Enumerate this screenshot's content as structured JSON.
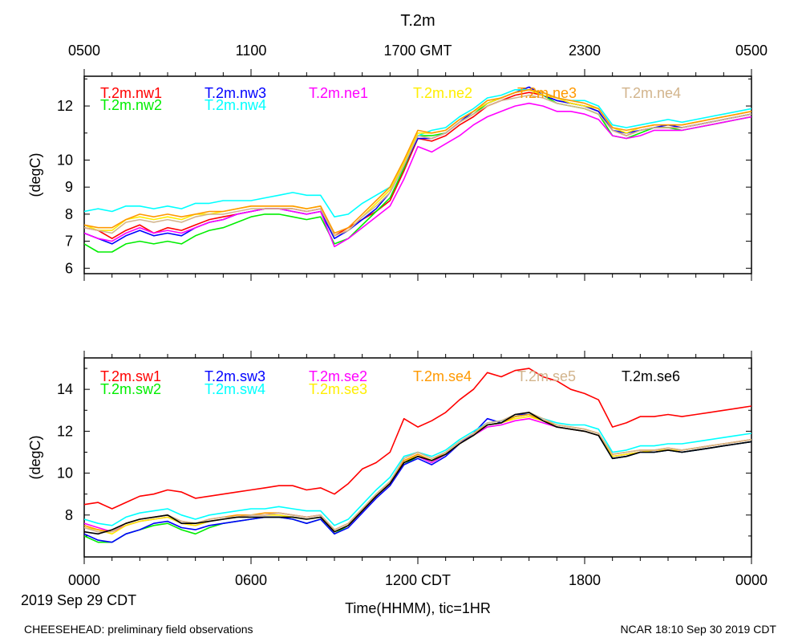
{
  "page": {
    "title": "T.2m",
    "footer_left": "CHEESEHEAD: preliminary field observations",
    "footer_right": "NCAR 18:10 Sep 30 2019 CDT",
    "date_label": "2019 Sep 29 CDT",
    "x_axis_label": "Time(HHMM), tic=1HR",
    "top_ticks": [
      "0500",
      "1100",
      "1700 GMT",
      "2300",
      "0500"
    ],
    "bottom_ticks": [
      "0000",
      "0600",
      "1200 CDT",
      "1800",
      "0000"
    ]
  },
  "chart_data": [
    {
      "type": "line",
      "panel": "top",
      "ylabel": "(degC)",
      "ylim": [
        5.8,
        13.1
      ],
      "xlim": [
        0,
        24
      ],
      "yticks": [
        "6",
        "7",
        "8",
        "9",
        "10",
        "12"
      ],
      "ytick_values": [
        6,
        7,
        8,
        9,
        10,
        12
      ],
      "x": [
        0,
        0.5,
        1,
        1.5,
        2,
        2.5,
        3,
        3.5,
        4,
        4.5,
        5,
        5.5,
        6,
        6.5,
        7,
        7.5,
        8,
        8.5,
        9,
        9.5,
        10,
        10.5,
        11,
        11.5,
        12,
        12.5,
        13,
        13.5,
        14,
        14.5,
        15,
        15.5,
        16,
        16.5,
        17,
        17.5,
        18,
        18.5,
        19,
        19.5,
        20,
        20.5,
        21,
        21.5,
        22,
        22.5,
        23,
        23.5,
        24
      ],
      "series": [
        {
          "name": "T.2m.nw1",
          "color": "#ff0000",
          "values": [
            7.5,
            7.4,
            7.1,
            7.4,
            7.6,
            7.3,
            7.5,
            7.4,
            7.6,
            7.8,
            7.9,
            8.0,
            8.1,
            8.2,
            8.2,
            8.2,
            8.1,
            8.2,
            7.2,
            7.5,
            7.8,
            8.1,
            8.5,
            9.6,
            10.8,
            10.7,
            10.9,
            11.3,
            11.6,
            12.0,
            12.2,
            12.4,
            12.5,
            12.4,
            12.2,
            12.1,
            12.0,
            11.8,
            11.1,
            10.9,
            11.1,
            11.2,
            11.2,
            11.2,
            11.3,
            11.4,
            11.5,
            11.6,
            11.7
          ]
        },
        {
          "name": "T.2m.nw2",
          "color": "#00ee00",
          "values": [
            6.9,
            6.6,
            6.6,
            6.9,
            7.0,
            6.9,
            7.0,
            6.9,
            7.2,
            7.4,
            7.5,
            7.7,
            7.9,
            8.0,
            8.0,
            7.9,
            7.8,
            7.9,
            6.9,
            7.1,
            7.6,
            8.1,
            8.6,
            9.7,
            10.9,
            10.9,
            11.0,
            11.4,
            11.7,
            12.1,
            12.3,
            12.5,
            12.6,
            12.4,
            12.1,
            12.0,
            11.9,
            11.7,
            10.9,
            10.8,
            11.0,
            11.2,
            11.2,
            11.1,
            11.2,
            11.3,
            11.4,
            11.5,
            11.6
          ]
        },
        {
          "name": "T.2m.nw3",
          "color": "#0000ff",
          "values": [
            7.3,
            7.1,
            6.9,
            7.2,
            7.4,
            7.2,
            7.3,
            7.2,
            7.5,
            7.7,
            7.8,
            8.0,
            8.1,
            8.2,
            8.2,
            8.1,
            8.0,
            8.1,
            7.1,
            7.4,
            7.8,
            8.2,
            8.8,
            9.8,
            10.8,
            10.8,
            11.0,
            11.4,
            11.8,
            12.1,
            12.3,
            12.5,
            12.7,
            12.4,
            12.2,
            12.1,
            12.0,
            11.8,
            11.1,
            11.0,
            11.1,
            11.2,
            11.3,
            11.2,
            11.3,
            11.4,
            11.5,
            11.6,
            11.7
          ]
        },
        {
          "name": "T.2m.nw4",
          "color": "#00ffff",
          "values": [
            8.1,
            8.2,
            8.1,
            8.3,
            8.3,
            8.2,
            8.3,
            8.2,
            8.4,
            8.4,
            8.5,
            8.5,
            8.5,
            8.6,
            8.7,
            8.8,
            8.7,
            8.7,
            7.9,
            8.0,
            8.4,
            8.7,
            9.0,
            9.9,
            10.9,
            11.1,
            11.2,
            11.6,
            11.9,
            12.3,
            12.4,
            12.6,
            12.6,
            12.5,
            12.3,
            12.2,
            12.2,
            12.0,
            11.3,
            11.2,
            11.3,
            11.4,
            11.5,
            11.4,
            11.5,
            11.6,
            11.7,
            11.8,
            11.9
          ]
        },
        {
          "name": "T.2m.ne1",
          "color": "#ff00ff",
          "values": [
            7.3,
            7.1,
            7.0,
            7.3,
            7.5,
            7.3,
            7.4,
            7.3,
            7.5,
            7.7,
            7.8,
            8.0,
            8.1,
            8.2,
            8.2,
            8.1,
            8.0,
            8.1,
            6.8,
            7.1,
            7.5,
            7.9,
            8.3,
            9.3,
            10.5,
            10.3,
            10.6,
            10.9,
            11.3,
            11.6,
            11.8,
            12.0,
            12.1,
            12.0,
            11.8,
            11.8,
            11.7,
            11.5,
            10.9,
            10.8,
            10.9,
            11.1,
            11.1,
            11.1,
            11.2,
            11.3,
            11.4,
            11.5,
            11.6
          ]
        },
        {
          "name": "T.2m.ne2",
          "color": "#ffee00",
          "values": [
            7.6,
            7.4,
            7.4,
            7.8,
            7.9,
            7.8,
            7.9,
            7.8,
            8.0,
            8.0,
            8.1,
            8.2,
            8.3,
            8.3,
            8.3,
            8.3,
            8.2,
            8.3,
            7.2,
            7.4,
            7.9,
            8.4,
            8.9,
            9.9,
            11.0,
            11.0,
            11.1,
            11.5,
            11.8,
            12.1,
            12.3,
            12.5,
            12.6,
            12.4,
            12.3,
            12.1,
            12.0,
            11.9,
            11.2,
            11.0,
            11.2,
            11.3,
            11.3,
            11.3,
            11.4,
            11.5,
            11.6,
            11.7,
            11.8
          ]
        },
        {
          "name": "T.2m.ne3",
          "color": "#ff9900",
          "values": [
            7.6,
            7.5,
            7.5,
            7.8,
            8.0,
            7.9,
            8.0,
            7.9,
            8.0,
            8.1,
            8.1,
            8.2,
            8.3,
            8.3,
            8.3,
            8.3,
            8.2,
            8.3,
            7.3,
            7.5,
            8.0,
            8.5,
            9.0,
            10.0,
            11.1,
            11.0,
            11.1,
            11.5,
            11.8,
            12.2,
            12.3,
            12.5,
            12.6,
            12.5,
            12.3,
            12.2,
            12.1,
            11.9,
            11.2,
            11.1,
            11.2,
            11.3,
            11.3,
            11.3,
            11.4,
            11.5,
            11.6,
            11.7,
            11.8
          ]
        },
        {
          "name": "T.2m.ne4",
          "color": "#d2b48c",
          "values": [
            7.5,
            7.4,
            7.3,
            7.7,
            7.8,
            7.7,
            7.8,
            7.7,
            7.9,
            8.0,
            8.0,
            8.1,
            8.2,
            8.2,
            8.2,
            8.2,
            8.1,
            8.2,
            7.2,
            7.4,
            7.9,
            8.3,
            8.8,
            9.8,
            10.9,
            10.8,
            11.0,
            11.4,
            11.7,
            12.0,
            12.2,
            12.3,
            12.4,
            12.3,
            12.1,
            12.0,
            11.9,
            11.7,
            11.1,
            10.9,
            11.1,
            11.2,
            11.2,
            11.2,
            11.3,
            11.4,
            11.5,
            11.6,
            11.7
          ]
        }
      ]
    },
    {
      "type": "line",
      "panel": "bottom",
      "ylabel": "(degC)",
      "ylim": [
        6.0,
        15.5
      ],
      "xlim": [
        0,
        24
      ],
      "yticks": [
        "8",
        "10",
        "12",
        "14"
      ],
      "ytick_values": [
        8,
        10,
        12,
        14
      ],
      "x": [
        0,
        0.5,
        1,
        1.5,
        2,
        2.5,
        3,
        3.5,
        4,
        4.5,
        5,
        5.5,
        6,
        6.5,
        7,
        7.5,
        8,
        8.5,
        9,
        9.5,
        10,
        10.5,
        11,
        11.5,
        12,
        12.5,
        13,
        13.5,
        14,
        14.5,
        15,
        15.5,
        16,
        16.5,
        17,
        17.5,
        18,
        18.5,
        19,
        19.5,
        20,
        20.5,
        21,
        21.5,
        22,
        22.5,
        23,
        23.5,
        24
      ],
      "series": [
        {
          "name": "T.2m.sw1",
          "color": "#ff0000",
          "values": [
            8.5,
            8.6,
            8.3,
            8.6,
            8.9,
            9.0,
            9.2,
            9.1,
            8.8,
            8.9,
            9.0,
            9.1,
            9.2,
            9.3,
            9.4,
            9.4,
            9.2,
            9.3,
            9.0,
            9.5,
            10.2,
            10.5,
            11.0,
            12.6,
            12.2,
            12.5,
            12.9,
            13.5,
            14.0,
            14.8,
            14.6,
            14.9,
            15.0,
            14.6,
            14.4,
            14.0,
            13.8,
            13.5,
            12.2,
            12.4,
            12.7,
            12.7,
            12.8,
            12.7,
            12.8,
            12.9,
            13.0,
            13.1,
            13.2
          ]
        },
        {
          "name": "T.2m.sw2",
          "color": "#00ee00",
          "values": [
            7.0,
            6.7,
            6.7,
            7.1,
            7.3,
            7.5,
            7.6,
            7.3,
            7.1,
            7.4,
            7.6,
            7.7,
            7.8,
            7.9,
            7.9,
            7.8,
            7.6,
            7.8,
            7.1,
            7.5,
            8.2,
            8.9,
            9.5,
            10.4,
            10.8,
            10.5,
            10.9,
            11.4,
            11.8,
            12.3,
            12.4,
            12.7,
            12.8,
            12.5,
            12.2,
            12.1,
            12.0,
            11.8,
            10.7,
            10.8,
            11.0,
            11.0,
            11.1,
            11.0,
            11.1,
            11.2,
            11.3,
            11.4,
            11.5
          ]
        },
        {
          "name": "T.2m.sw3",
          "color": "#0000ff",
          "values": [
            7.1,
            6.8,
            6.7,
            7.1,
            7.3,
            7.6,
            7.7,
            7.4,
            7.3,
            7.5,
            7.6,
            7.7,
            7.8,
            7.9,
            7.9,
            7.8,
            7.6,
            7.8,
            7.1,
            7.4,
            8.1,
            8.8,
            9.4,
            10.4,
            10.7,
            10.4,
            10.8,
            11.4,
            11.9,
            12.6,
            12.4,
            12.8,
            12.8,
            12.5,
            12.2,
            12.1,
            12.0,
            11.8,
            10.7,
            10.8,
            11.0,
            11.0,
            11.1,
            11.0,
            11.1,
            11.2,
            11.3,
            11.4,
            11.5
          ]
        },
        {
          "name": "T.2m.sw4",
          "color": "#00ffff",
          "values": [
            7.8,
            7.6,
            7.5,
            7.9,
            8.1,
            8.2,
            8.3,
            8.0,
            7.8,
            8.0,
            8.1,
            8.2,
            8.3,
            8.3,
            8.4,
            8.3,
            8.2,
            8.2,
            7.5,
            7.8,
            8.5,
            9.2,
            9.8,
            10.8,
            11.0,
            10.8,
            11.1,
            11.6,
            12.0,
            12.4,
            12.5,
            12.7,
            12.8,
            12.6,
            12.4,
            12.3,
            12.3,
            12.1,
            11.0,
            11.1,
            11.3,
            11.3,
            11.4,
            11.4,
            11.5,
            11.6,
            11.7,
            11.8,
            11.9
          ]
        },
        {
          "name": "T.2m.se2",
          "color": "#ff00ff",
          "values": [
            7.6,
            7.4,
            7.2,
            7.5,
            7.7,
            7.8,
            7.9,
            7.6,
            7.5,
            7.7,
            7.8,
            7.9,
            8.0,
            8.0,
            8.1,
            8.0,
            7.9,
            8.0,
            7.2,
            7.5,
            8.2,
            8.9,
            9.5,
            10.5,
            10.8,
            10.5,
            10.9,
            11.4,
            11.8,
            12.2,
            12.3,
            12.5,
            12.6,
            12.4,
            12.2,
            12.1,
            12.0,
            11.8,
            10.8,
            10.9,
            11.0,
            11.1,
            11.1,
            11.1,
            11.2,
            11.3,
            11.4,
            11.5,
            11.6
          ]
        },
        {
          "name": "T.2m.se3",
          "color": "#ffee00",
          "values": [
            7.4,
            7.3,
            7.1,
            7.5,
            7.7,
            7.8,
            7.9,
            7.6,
            7.5,
            7.7,
            7.8,
            7.9,
            8.0,
            8.0,
            8.0,
            7.9,
            7.8,
            7.9,
            7.2,
            7.5,
            8.2,
            8.9,
            9.5,
            10.5,
            10.9,
            10.6,
            10.9,
            11.4,
            11.8,
            12.3,
            12.4,
            12.6,
            12.7,
            12.5,
            12.2,
            12.1,
            12.0,
            11.8,
            10.8,
            10.9,
            11.0,
            11.1,
            11.1,
            11.1,
            11.2,
            11.3,
            11.4,
            11.5,
            11.6
          ]
        },
        {
          "name": "T.2m.se4",
          "color": "#ff9900",
          "values": [
            7.5,
            7.3,
            7.2,
            7.6,
            7.8,
            7.9,
            8.0,
            7.7,
            7.6,
            7.8,
            7.9,
            8.0,
            8.0,
            8.1,
            8.1,
            8.0,
            7.9,
            8.0,
            7.3,
            7.6,
            8.3,
            9.0,
            9.6,
            10.6,
            10.9,
            10.6,
            11.0,
            11.5,
            11.9,
            12.3,
            12.4,
            12.7,
            12.8,
            12.5,
            12.3,
            12.2,
            12.1,
            11.9,
            10.9,
            11.0,
            11.1,
            11.1,
            11.2,
            11.1,
            11.2,
            11.3,
            11.4,
            11.5,
            11.6
          ]
        },
        {
          "name": "T.2m.se5",
          "color": "#d2b48c",
          "values": [
            7.4,
            7.2,
            7.2,
            7.6,
            7.8,
            7.9,
            8.0,
            7.7,
            7.6,
            7.8,
            7.9,
            7.9,
            8.0,
            8.0,
            8.1,
            8.0,
            7.9,
            8.0,
            7.3,
            7.6,
            8.3,
            9.0,
            9.6,
            10.7,
            11.0,
            10.7,
            11.0,
            11.5,
            11.9,
            12.4,
            12.5,
            12.8,
            12.9,
            12.6,
            12.3,
            12.2,
            12.1,
            11.9,
            10.9,
            11.0,
            11.1,
            11.1,
            11.2,
            11.1,
            11.2,
            11.3,
            11.4,
            11.5,
            11.6
          ]
        },
        {
          "name": "T.2m.se6",
          "color": "#000000",
          "values": [
            7.2,
            7.1,
            7.3,
            7.6,
            7.8,
            7.9,
            8.0,
            7.6,
            7.6,
            7.7,
            7.8,
            7.9,
            7.9,
            7.9,
            7.9,
            7.9,
            7.8,
            7.9,
            7.2,
            7.5,
            8.2,
            8.9,
            9.5,
            10.5,
            10.8,
            10.6,
            10.9,
            11.4,
            11.8,
            12.3,
            12.4,
            12.8,
            12.9,
            12.5,
            12.2,
            12.1,
            12.0,
            11.8,
            10.7,
            10.8,
            11.0,
            11.0,
            11.1,
            11.0,
            11.1,
            11.2,
            11.3,
            11.4,
            11.5
          ]
        }
      ]
    }
  ]
}
